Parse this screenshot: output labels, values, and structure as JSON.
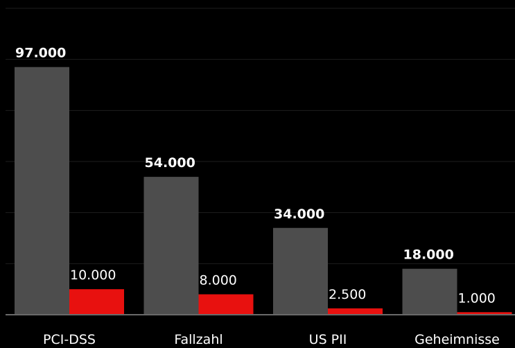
{
  "chart_data": {
    "type": "bar",
    "categories": [
      "PCI-DSS",
      "Fallzahl",
      "US PII",
      "Geheimnisse"
    ],
    "series": [
      {
        "color": "#4d4d4d",
        "values": [
          97000,
          54000,
          34000,
          18000
        ],
        "value_labels": [
          "97.000",
          "54.000",
          "34.000",
          "18.000"
        ]
      },
      {
        "color": "#e8110f",
        "values": [
          10000,
          8000,
          2500,
          1000
        ],
        "value_labels": [
          "10.000",
          "8.000",
          "2.500",
          "1.000"
        ]
      }
    ],
    "ylim": [
      0,
      120000
    ],
    "yticks": [
      0,
      20000,
      40000,
      60000,
      80000,
      100000,
      120000
    ],
    "grid": true
  }
}
